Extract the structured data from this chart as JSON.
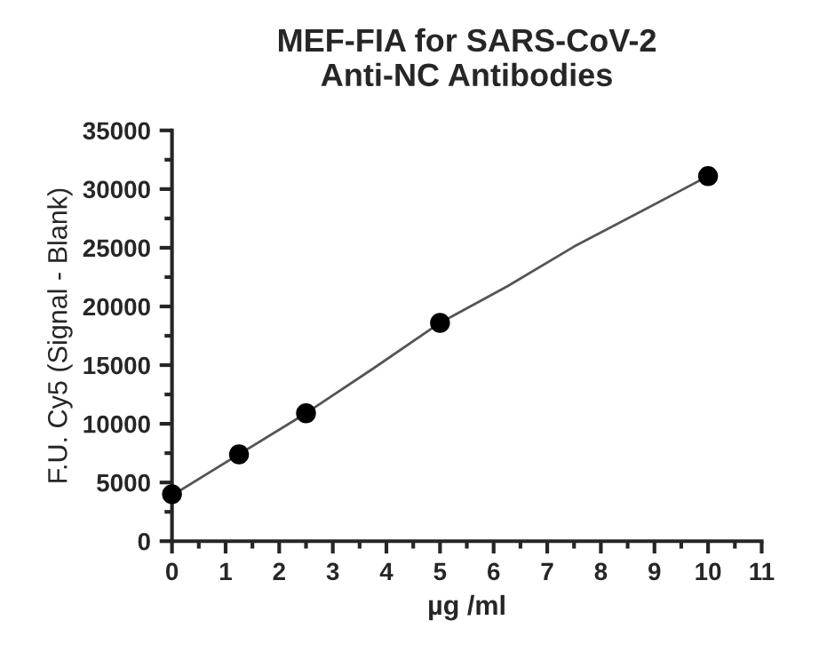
{
  "chart_data": {
    "type": "scatter",
    "title": "MEF-FIA for SARS-CoV-2\nAnti-NC Antibodies",
    "xlabel": "µg /ml",
    "ylabel": "F.U. Cy5 (Signal - Blank)",
    "xlim": [
      0,
      11
    ],
    "xticks": [
      0,
      1,
      2,
      3,
      4,
      5,
      6,
      7,
      8,
      9,
      10,
      11
    ],
    "ylim": [
      0,
      35000
    ],
    "yticks": [
      0,
      5000,
      10000,
      15000,
      20000,
      25000,
      30000,
      35000
    ],
    "grid": false,
    "series": [
      {
        "color": "#000000",
        "marker": "circle",
        "x": [
          0,
          1.25,
          2.5,
          5,
          10
        ],
        "values": [
          4000,
          7400,
          10900,
          18600,
          31100
        ]
      },
      {
        "type": "line",
        "color": "#555555",
        "line_style": "solid",
        "marker": "none",
        "x": [
          0,
          1.25,
          2.5,
          3.75,
          5,
          6.25,
          7.5,
          8.75,
          10
        ],
        "values": [
          3900,
          7400,
          10900,
          14700,
          18600,
          21700,
          25100,
          28100,
          31100
        ]
      }
    ]
  }
}
